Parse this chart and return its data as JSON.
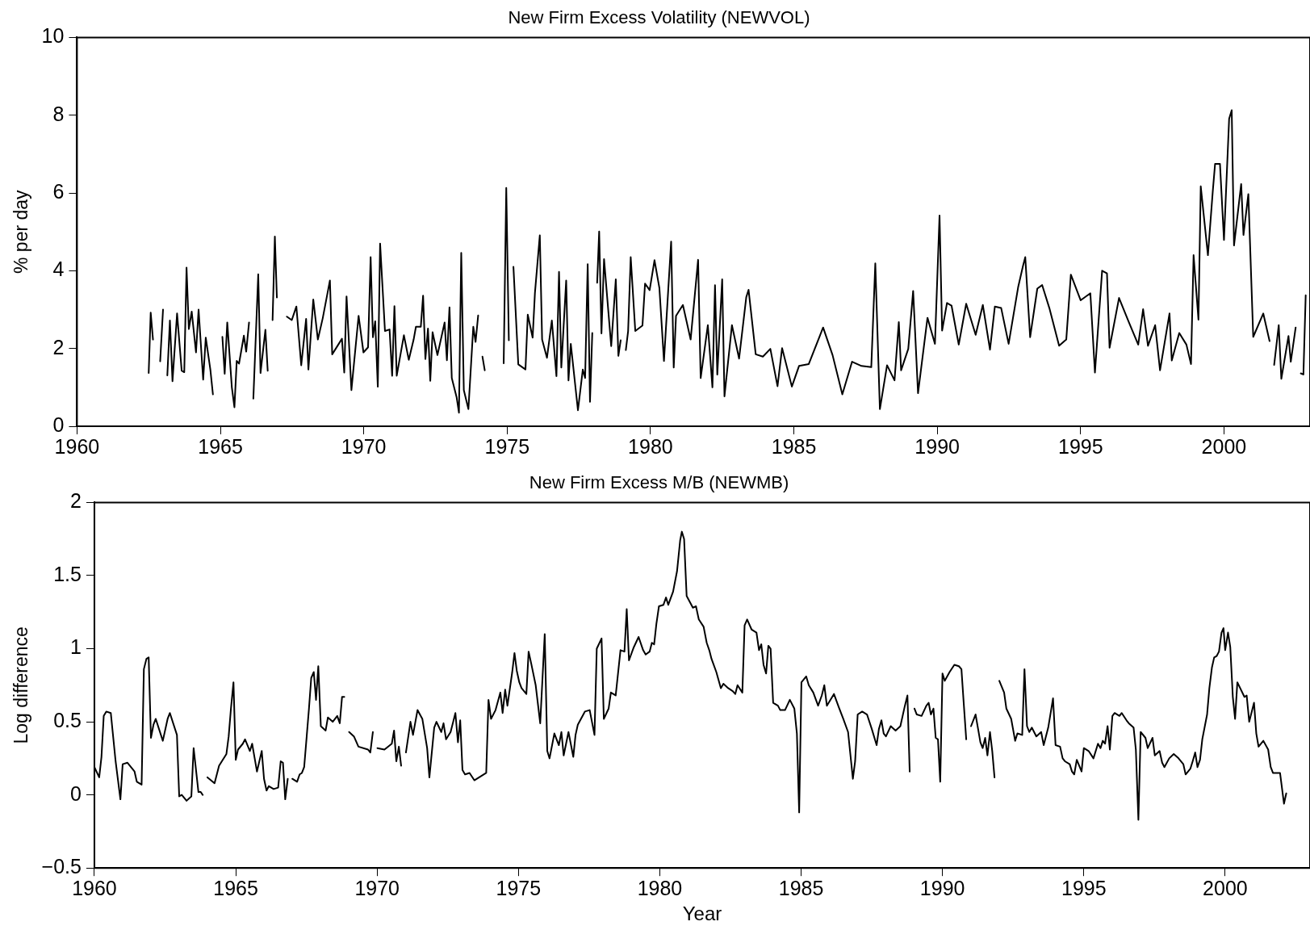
{
  "chart_data": [
    {
      "type": "line",
      "title": "New Firm Excess Volatility (NEWVOL)",
      "ylabel": "% per day",
      "xlim": [
        1960,
        2003
      ],
      "xticks": [
        1960,
        1965,
        1970,
        1975,
        1980,
        1985,
        1990,
        1995,
        2000
      ],
      "ylim": [
        0,
        10
      ],
      "yticks": [
        0,
        2,
        4,
        6,
        8,
        10
      ],
      "grid": false,
      "legend": false,
      "marker": "none",
      "line_style": "solid",
      "series": [
        {
          "color": "#000000",
          "x": [
            1962.5,
            1962.57,
            1962.65,
            1962.78,
            1962.9,
            1963.0,
            1963.08,
            1963.15,
            1963.24,
            1963.33,
            1963.49,
            1963.65,
            1963.74,
            1963.82,
            1963.9,
            1964.0,
            1964.15,
            1964.24,
            1964.4,
            1964.49,
            1964.65,
            1964.74,
            1964.9,
            1965.07,
            1965.15,
            1965.24,
            1965.4,
            1965.49,
            1965.57,
            1965.65,
            1965.82,
            1965.9,
            1966.0,
            1966.08,
            1966.15,
            1966.32,
            1966.4,
            1966.57,
            1966.65,
            1966.74,
            1966.82,
            1966.9,
            1966.97,
            1967.15,
            1967.32,
            1967.49,
            1967.65,
            1967.82,
            1967.99,
            1968.07,
            1968.24,
            1968.4,
            1968.57,
            1968.82,
            1968.9,
            1969.24,
            1969.32,
            1969.4,
            1969.57,
            1969.82,
            1969.99,
            1970.15,
            1970.24,
            1970.32,
            1970.4,
            1970.49,
            1970.57,
            1970.74,
            1970.9,
            1970.99,
            1971.07,
            1971.15,
            1971.4,
            1971.57,
            1971.74,
            1971.82,
            1971.99,
            1972.07,
            1972.15,
            1972.24,
            1972.32,
            1972.4,
            1972.57,
            1972.82,
            1972.9,
            1972.99,
            1973.07,
            1973.24,
            1973.32,
            1973.4,
            1973.49,
            1973.65,
            1973.82,
            1973.9,
            1973.99,
            1974.06,
            1974.14,
            1974.22,
            1974.5,
            1974.88,
            1974.97,
            1975.06,
            1975.14,
            1975.22,
            1975.39,
            1975.64,
            1975.72,
            1975.89,
            1975.97,
            1976.14,
            1976.22,
            1976.39,
            1976.56,
            1976.72,
            1976.81,
            1976.89,
            1977.06,
            1977.14,
            1977.22,
            1977.47,
            1977.64,
            1977.72,
            1977.81,
            1977.89,
            1977.97,
            1978.05,
            1978.14,
            1978.21,
            1978.29,
            1978.38,
            1978.63,
            1978.79,
            1978.88,
            1978.96,
            1979.05,
            1979.14,
            1979.22,
            1979.31,
            1979.47,
            1979.72,
            1979.81,
            1979.97,
            1980.14,
            1980.31,
            1980.47,
            1980.72,
            1980.81,
            1980.89,
            1981.13,
            1981.4,
            1981.66,
            1981.75,
            1982.0,
            1982.16,
            1982.25,
            1982.33,
            1982.5,
            1982.58,
            1982.84,
            1983.09,
            1983.34,
            1983.42,
            1983.67,
            1983.92,
            1984.18,
            1984.43,
            1984.59,
            1984.93,
            1985.18,
            1985.52,
            1986.02,
            1986.35,
            1986.69,
            1987.03,
            1987.36,
            1987.7,
            1987.84,
            1988.0,
            1988.25,
            1988.51,
            1988.66,
            1988.74,
            1988.99,
            1989.16,
            1989.33,
            1989.66,
            1989.92,
            1990.08,
            1990.17,
            1990.34,
            1990.5,
            1990.75,
            1991.01,
            1991.34,
            1991.59,
            1991.84,
            1992.01,
            1992.23,
            1992.49,
            1992.82,
            1992.99,
            1993.07,
            1993.24,
            1993.49,
            1993.66,
            1993.91,
            1994.25,
            1994.5,
            1994.66,
            1995.0,
            1995.34,
            1995.5,
            1995.75,
            1995.92,
            1996.01,
            1996.34,
            1996.68,
            1997.01,
            1997.18,
            1997.35,
            1997.6,
            1997.77,
            1998.1,
            1998.18,
            1998.44,
            1998.69,
            1998.85,
            1998.94,
            1999.11,
            1999.19,
            1999.44,
            1999.61,
            1999.69,
            1999.86,
            2000.0,
            2000.18,
            2000.27,
            2000.35,
            2000.6,
            2000.68,
            2000.85,
            2001.02,
            2001.37,
            2001.59,
            2001.67,
            2001.75,
            2001.91,
            2002.0,
            2002.25,
            2002.33,
            2002.5,
            2002.6,
            2002.68,
            2002.77,
            2002.85
          ],
          "values": [
            1.37,
            2.92,
            2.23,
            null,
            1.67,
            3.0,
            null,
            1.31,
            2.72,
            1.16,
            2.9,
            1.43,
            1.39,
            4.08,
            2.5,
            2.95,
            1.9,
            3.0,
            1.2,
            2.28,
            1.46,
            0.82,
            null,
            2.3,
            1.35,
            2.67,
            1.0,
            0.49,
            1.68,
            1.61,
            2.33,
            1.92,
            2.67,
            null,
            0.71,
            3.91,
            1.37,
            2.48,
            1.43,
            null,
            2.73,
            4.88,
            3.31,
            null,
            2.82,
            2.73,
            3.08,
            1.57,
            2.76,
            1.46,
            3.26,
            2.23,
            2.78,
            3.75,
            1.85,
            2.25,
            1.38,
            3.34,
            0.93,
            2.84,
            1.9,
            2.03,
            4.35,
            2.29,
            2.7,
            1.02,
            4.7,
            2.45,
            2.49,
            1.3,
            3.09,
            1.3,
            2.34,
            1.71,
            2.23,
            2.56,
            2.56,
            3.36,
            1.73,
            2.51,
            1.17,
            2.42,
            1.83,
            2.67,
            1.7,
            3.06,
            1.24,
            0.74,
            0.35,
            4.46,
            0.93,
            0.44,
            2.56,
            2.17,
            2.85,
            null,
            1.79,
            1.44,
            null,
            1.62,
            6.13,
            2.21,
            null,
            4.1,
            1.59,
            1.46,
            2.87,
            2.28,
            3.43,
            4.91,
            2.23,
            1.76,
            2.72,
            1.29,
            3.97,
            1.51,
            3.75,
            1.18,
            2.12,
            0.41,
            1.46,
            1.24,
            4.17,
            0.63,
            2.4,
            null,
            3.69,
            5.01,
            2.39,
            4.3,
            2.06,
            3.78,
            1.81,
            2.21,
            null,
            1.96,
            2.45,
            4.35,
            2.45,
            2.59,
            3.67,
            3.5,
            4.27,
            3.56,
            1.68,
            4.75,
            1.51,
            2.84,
            3.12,
            2.23,
            4.28,
            1.24,
            2.6,
            1.0,
            3.63,
            1.33,
            3.78,
            0.77,
            2.6,
            1.74,
            3.32,
            3.51,
            1.85,
            1.79,
            1.99,
            1.03,
            2.01,
            1.02,
            1.55,
            1.6,
            2.54,
            1.83,
            0.82,
            1.66,
            1.55,
            1.52,
            4.19,
            0.44,
            1.57,
            1.18,
            2.68,
            1.44,
            1.99,
            3.48,
            0.85,
            2.79,
            2.12,
            5.42,
            2.46,
            3.17,
            3.1,
            2.1,
            3.15,
            2.35,
            3.12,
            1.97,
            3.08,
            3.04,
            2.12,
            3.57,
            4.12,
            4.35,
            2.29,
            3.54,
            3.63,
            3.04,
            2.07,
            2.23,
            3.9,
            3.24,
            3.42,
            1.38,
            4.0,
            3.93,
            2.02,
            3.3,
            2.68,
            2.1,
            3.01,
            2.07,
            2.6,
            1.44,
            2.9,
            1.69,
            2.4,
            2.1,
            1.6,
            4.4,
            2.74,
            6.17,
            4.4,
            6.05,
            6.75,
            6.75,
            4.79,
            7.91,
            8.13,
            4.65,
            6.23,
            4.92,
            5.97,
            2.3,
            2.9,
            2.19,
            null,
            1.58,
            2.6,
            1.22,
            2.32,
            1.66,
            2.54,
            null,
            1.36,
            1.33,
            3.37
          ]
        }
      ]
    },
    {
      "type": "line",
      "title": "New Firm Excess M/B (NEWMB)",
      "xlabel": "Year",
      "ylabel": "Log difference",
      "xlim": [
        1960,
        2003
      ],
      "xticks": [
        1960,
        1965,
        1970,
        1975,
        1980,
        1985,
        1990,
        1995,
        2000
      ],
      "ylim": [
        -0.5,
        2
      ],
      "yticks": [
        {
          "value": -0.5,
          "label": "−0.5"
        },
        0,
        0.5,
        1,
        1.5,
        2
      ],
      "grid": false,
      "legend": false,
      "marker": "none",
      "line_style": "solid",
      "series": [
        {
          "color": "#000000",
          "x": [
            1960.0,
            1960.17,
            1960.25,
            1960.33,
            1960.42,
            1960.58,
            1960.75,
            1960.92,
            1961.0,
            1961.17,
            1961.42,
            1961.5,
            1961.67,
            1961.75,
            1961.84,
            1961.92,
            1962.0,
            1962.09,
            1962.17,
            1962.42,
            1962.59,
            1962.67,
            1962.92,
            1963.0,
            1963.09,
            1963.26,
            1963.43,
            1963.51,
            1963.68,
            1963.76,
            1963.83,
            1963.92,
            1964.0,
            1964.25,
            1964.41,
            1964.67,
            1964.75,
            1964.83,
            1964.92,
            1965.0,
            1965.08,
            1965.25,
            1965.33,
            1965.5,
            1965.58,
            1965.67,
            1965.75,
            1965.92,
            1966.0,
            1966.09,
            1966.17,
            1966.34,
            1966.5,
            1966.59,
            1966.67,
            1966.75,
            1966.84,
            1966.92,
            1967.0,
            1967.17,
            1967.26,
            1967.34,
            1967.42,
            1967.51,
            1967.59,
            1967.67,
            1967.76,
            1967.84,
            1967.92,
            1968.01,
            1968.18,
            1968.26,
            1968.43,
            1968.59,
            1968.68,
            1968.76,
            1968.84,
            1968.92,
            1969.01,
            1969.18,
            1969.34,
            1969.68,
            1969.76,
            1969.85,
            1969.93,
            1970.01,
            1970.26,
            1970.52,
            1970.6,
            1970.68,
            1970.77,
            1970.85,
            1970.93,
            1971.02,
            1971.18,
            1971.27,
            1971.43,
            1971.6,
            1971.77,
            1971.85,
            1972.02,
            1972.1,
            1972.27,
            1972.35,
            1972.44,
            1972.6,
            1972.77,
            1972.86,
            1972.94,
            1973.02,
            1973.11,
            1973.27,
            1973.44,
            1973.69,
            1973.86,
            1973.94,
            1974.03,
            1974.19,
            1974.36,
            1974.44,
            1974.53,
            1974.61,
            1974.78,
            1974.86,
            1974.94,
            1975.03,
            1975.11,
            1975.28,
            1975.36,
            1975.45,
            1975.61,
            1975.77,
            1975.93,
            1976.02,
            1976.1,
            1976.27,
            1976.43,
            1976.52,
            1976.6,
            1976.77,
            1976.94,
            1977.02,
            1977.1,
            1977.35,
            1977.52,
            1977.69,
            1977.77,
            1977.94,
            1978.02,
            1978.19,
            1978.27,
            1978.44,
            1978.61,
            1978.75,
            1978.83,
            1978.91,
            1979.08,
            1979.25,
            1979.41,
            1979.5,
            1979.64,
            1979.72,
            1979.8,
            1979.88,
            1979.97,
            1980.13,
            1980.22,
            1980.3,
            1980.47,
            1980.61,
            1980.72,
            1980.78,
            1980.86,
            1980.95,
            1981.17,
            1981.28,
            1981.38,
            1981.55,
            1981.66,
            1981.75,
            1981.83,
            1982.0,
            1982.16,
            1982.25,
            1982.42,
            1982.58,
            1982.67,
            1982.75,
            1982.92,
            1983.0,
            1983.09,
            1983.25,
            1983.42,
            1983.51,
            1983.59,
            1983.67,
            1983.76,
            1983.84,
            1983.92,
            1984.01,
            1984.18,
            1984.26,
            1984.43,
            1984.6,
            1984.76,
            1984.85,
            1984.93,
            1985.01,
            1985.18,
            1985.27,
            1985.43,
            1985.6,
            1985.73,
            1985.82,
            1985.91,
            1986.16,
            1986.33,
            1986.49,
            1986.66,
            1986.83,
            1986.91,
            1987.0,
            1987.16,
            1987.33,
            1987.5,
            1987.67,
            1987.75,
            1987.84,
            1987.92,
            1988.0,
            1988.17,
            1988.34,
            1988.51,
            1988.67,
            1988.76,
            1988.84,
            1988.92,
            1989.01,
            1989.09,
            1989.26,
            1989.43,
            1989.51,
            1989.59,
            1989.68,
            1989.76,
            1989.84,
            1989.92,
            1990.0,
            1990.08,
            1990.25,
            1990.42,
            1990.58,
            1990.67,
            1990.75,
            1990.84,
            1990.92,
            1991.01,
            1991.17,
            1991.26,
            1991.34,
            1991.42,
            1991.51,
            1991.59,
            1991.68,
            1991.76,
            1991.84,
            1991.92,
            1992.01,
            1992.18,
            1992.26,
            1992.43,
            1992.57,
            1992.65,
            1992.82,
            1992.9,
            1992.99,
            1993.07,
            1993.16,
            1993.32,
            1993.49,
            1993.58,
            1993.74,
            1993.91,
            1994.0,
            1994.16,
            1994.25,
            1994.33,
            1994.5,
            1994.58,
            1994.66,
            1994.75,
            1994.92,
            1995.0,
            1995.17,
            1995.34,
            1995.5,
            1995.59,
            1995.67,
            1995.75,
            1995.84,
            1995.92,
            1996.01,
            1996.09,
            1996.26,
            1996.34,
            1996.51,
            1996.59,
            1996.76,
            1996.84,
            1996.93,
            1997.01,
            1997.18,
            1997.26,
            1997.43,
            1997.51,
            1997.68,
            1997.77,
            1997.85,
            1998.02,
            1998.18,
            1998.35,
            1998.52,
            1998.6,
            1998.77,
            1998.85,
            1998.94,
            1999.02,
            1999.11,
            1999.19,
            1999.36,
            1999.44,
            1999.53,
            1999.61,
            1999.7,
            1999.78,
            1999.87,
            1999.94,
            2000.0,
            2000.1,
            2000.18,
            2000.27,
            2000.35,
            2000.43,
            2000.68,
            2000.76,
            2000.85,
            2001.02,
            2001.1,
            2001.18,
            2001.35,
            2001.52,
            2001.61,
            2001.69,
            2001.85,
            2001.94,
            2002.08,
            2002.16
          ],
          "values": [
            0.19,
            0.12,
            0.26,
            0.54,
            0.57,
            0.56,
            0.23,
            -0.03,
            0.21,
            0.22,
            0.16,
            0.09,
            0.07,
            0.86,
            0.93,
            0.94,
            0.39,
            0.48,
            0.52,
            0.37,
            0.52,
            0.56,
            0.41,
            -0.01,
            0.0,
            -0.04,
            -0.01,
            0.32,
            0.02,
            0.02,
            0.0,
            null,
            0.12,
            0.08,
            0.2,
            0.28,
            0.4,
            0.59,
            0.77,
            0.24,
            0.31,
            0.35,
            0.38,
            0.3,
            0.35,
            0.25,
            0.16,
            0.3,
            0.11,
            0.03,
            0.06,
            0.04,
            0.05,
            0.23,
            0.22,
            -0.03,
            0.11,
            null,
            0.11,
            0.09,
            0.14,
            0.15,
            0.19,
            0.4,
            0.59,
            0.8,
            0.84,
            0.65,
            0.88,
            0.47,
            0.44,
            0.53,
            0.5,
            0.54,
            0.49,
            0.67,
            0.67,
            null,
            0.43,
            0.4,
            0.33,
            0.31,
            0.29,
            0.43,
            null,
            0.32,
            0.31,
            0.35,
            0.44,
            0.23,
            0.33,
            0.2,
            null,
            0.29,
            0.5,
            0.41,
            0.58,
            0.52,
            0.32,
            0.12,
            0.46,
            0.5,
            0.43,
            0.49,
            0.38,
            0.43,
            0.56,
            0.36,
            0.51,
            0.17,
            0.14,
            0.15,
            0.1,
            0.13,
            0.15,
            0.65,
            0.52,
            0.58,
            0.7,
            0.56,
            0.72,
            0.61,
            0.84,
            0.97,
            0.85,
            0.77,
            0.73,
            0.69,
            0.98,
            0.9,
            0.75,
            0.49,
            1.1,
            0.3,
            0.25,
            0.42,
            0.34,
            0.43,
            0.27,
            0.43,
            0.26,
            0.41,
            0.48,
            0.57,
            0.58,
            0.41,
            1.0,
            1.07,
            0.52,
            0.59,
            0.7,
            0.68,
            0.99,
            0.98,
            1.27,
            0.92,
            1.01,
            1.08,
            0.99,
            0.96,
            0.98,
            1.04,
            1.03,
            1.17,
            1.29,
            1.3,
            1.35,
            1.3,
            1.39,
            1.53,
            1.74,
            1.8,
            1.75,
            1.36,
            1.28,
            1.29,
            1.2,
            1.15,
            1.04,
            0.99,
            0.93,
            0.84,
            0.73,
            0.76,
            0.73,
            0.71,
            0.69,
            0.75,
            0.7,
            1.16,
            1.2,
            1.13,
            1.11,
            0.99,
            1.03,
            0.89,
            0.83,
            1.02,
            1.0,
            0.63,
            0.61,
            0.58,
            0.58,
            0.65,
            0.59,
            0.42,
            -0.12,
            0.77,
            0.81,
            0.75,
            0.7,
            0.61,
            0.68,
            0.75,
            0.61,
            0.69,
            0.6,
            0.52,
            0.43,
            0.11,
            0.23,
            0.55,
            0.57,
            0.55,
            0.45,
            0.34,
            0.45,
            0.51,
            0.42,
            0.4,
            0.47,
            0.44,
            0.47,
            0.61,
            0.68,
            0.16,
            null,
            0.59,
            0.55,
            0.54,
            0.61,
            0.63,
            0.55,
            0.59,
            0.39,
            0.38,
            0.09,
            0.83,
            0.78,
            0.84,
            0.89,
            0.88,
            0.86,
            0.63,
            0.38,
            null,
            0.47,
            0.55,
            0.45,
            0.36,
            0.32,
            0.39,
            0.27,
            0.43,
            0.3,
            0.12,
            null,
            0.78,
            0.7,
            0.59,
            0.52,
            0.37,
            0.42,
            0.41,
            0.86,
            0.47,
            0.43,
            0.46,
            0.4,
            0.43,
            0.34,
            0.46,
            0.66,
            0.34,
            0.33,
            0.25,
            0.23,
            0.21,
            0.16,
            0.14,
            0.24,
            0.16,
            0.32,
            0.3,
            0.25,
            0.35,
            0.32,
            0.37,
            0.35,
            0.47,
            0.31,
            0.54,
            0.56,
            0.54,
            0.56,
            0.51,
            0.49,
            0.46,
            0.31,
            -0.17,
            0.43,
            0.39,
            0.32,
            0.39,
            0.27,
            0.3,
            0.22,
            0.19,
            0.25,
            0.28,
            0.25,
            0.21,
            0.14,
            0.18,
            0.23,
            0.29,
            0.19,
            0.24,
            0.38,
            0.55,
            0.73,
            0.87,
            0.94,
            0.95,
            0.98,
            1.11,
            1.14,
            0.99,
            1.11,
            1.01,
            0.67,
            0.52,
            0.77,
            0.67,
            0.68,
            0.5,
            0.63,
            0.42,
            0.33,
            0.37,
            0.31,
            0.19,
            0.15,
            0.15,
            0.15,
            -0.06,
            0.01
          ]
        }
      ]
    }
  ]
}
